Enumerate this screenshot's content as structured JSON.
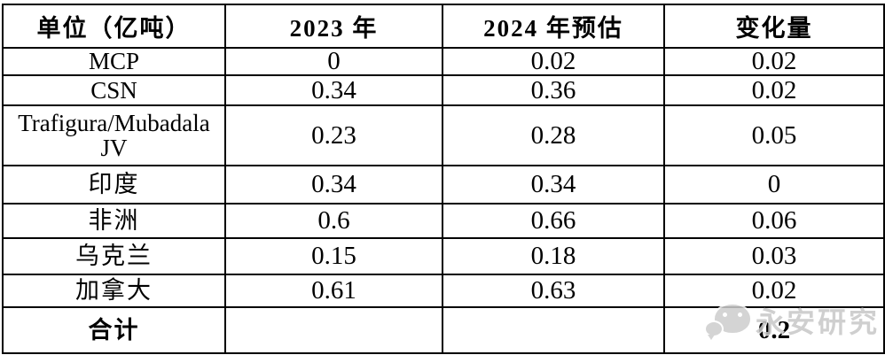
{
  "chart_data": {
    "type": "table",
    "title": "",
    "columns": [
      "单位（亿吨）",
      "2023 年",
      "2024 年预估",
      "变化量"
    ],
    "rows": [
      {
        "label": "MCP",
        "values": [
          "0",
          "0.02",
          "0.02"
        ]
      },
      {
        "label": "CSN",
        "values": [
          "0.34",
          "0.36",
          "0.02"
        ]
      },
      {
        "label": "Trafigura/Mubadala JV",
        "values": [
          "0.23",
          "0.28",
          "0.05"
        ]
      },
      {
        "label": "印度",
        "values": [
          "0.34",
          "0.34",
          "0"
        ]
      },
      {
        "label": "非洲",
        "values": [
          "0.6",
          "0.66",
          "0.06"
        ]
      },
      {
        "label": "乌克兰",
        "values": [
          "0.15",
          "0.18",
          "0.03"
        ]
      },
      {
        "label": "加拿大",
        "values": [
          "0.61",
          "0.63",
          "0.02"
        ]
      },
      {
        "label": "合计",
        "values": [
          "",
          "",
          "0.2"
        ]
      }
    ],
    "layout": {
      "grid": "full-borders",
      "header_bold": true,
      "sum_row_bold": true
    }
  },
  "watermark": {
    "label": "永安研究",
    "icon": "wechat-icon",
    "color": "#c7c7c7"
  },
  "colors": {
    "border": "#000000",
    "text": "#000000",
    "background": "#ffffff"
  }
}
